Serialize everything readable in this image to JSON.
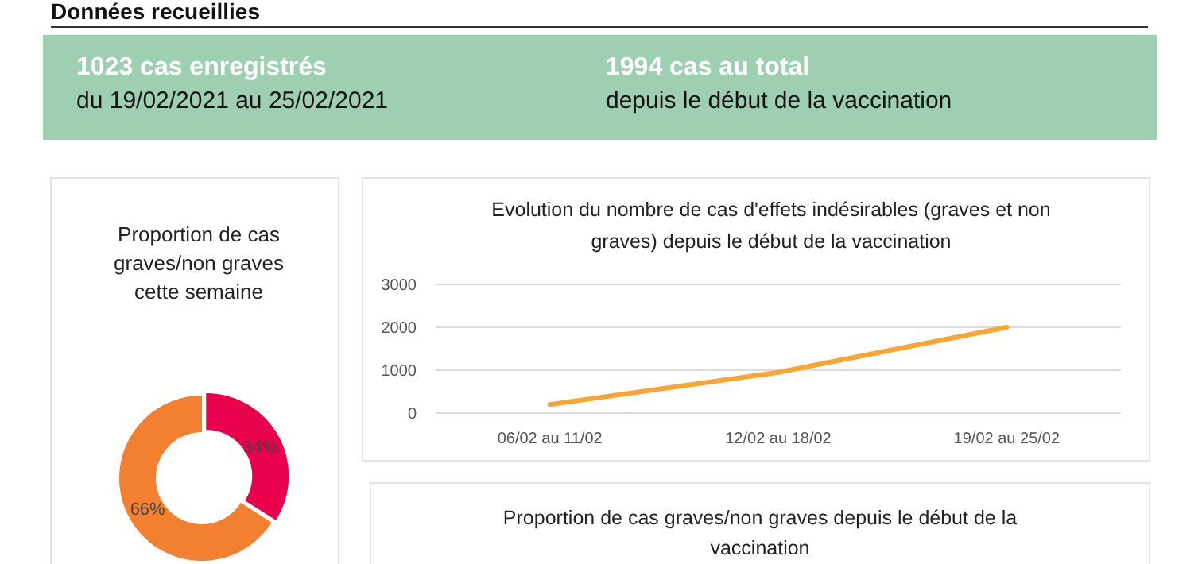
{
  "chart_data": [
    {
      "type": "other",
      "title": "Données recueillies",
      "annotations": [
        "1023 cas enregistrés",
        "du 19/02/2021 au 25/02/2021",
        "1994 cas au total",
        "depuis le début de la vaccination"
      ]
    },
    {
      "type": "donut",
      "title": "Proportion de cas graves/non graves cette semaine",
      "categories": [
        null,
        null
      ],
      "values": [
        34,
        66
      ],
      "colors": [
        "#e8004c",
        "#f28030"
      ],
      "value_labels": [
        "34%",
        "66%"
      ]
    },
    {
      "type": "line",
      "title": "Evolution du nombre de cas d'effets indésirables (graves et non graves) depuis le début de la vaccination",
      "categories": [
        "06/02 au 11/02",
        "12/02 au 18/02",
        "19/02 au 25/02"
      ],
      "series": [
        {
          "color": "#f9a533",
          "values": [
            200,
            950,
            2000
          ]
        }
      ],
      "ylim": [
        0,
        3000
      ],
      "yticks": [
        0,
        1000,
        2000,
        3000
      ],
      "grid": "y",
      "marker": "none"
    },
    {
      "type": "other",
      "title": "Proportion de cas graves/non graves depuis le début de la vaccination"
    }
  ]
}
